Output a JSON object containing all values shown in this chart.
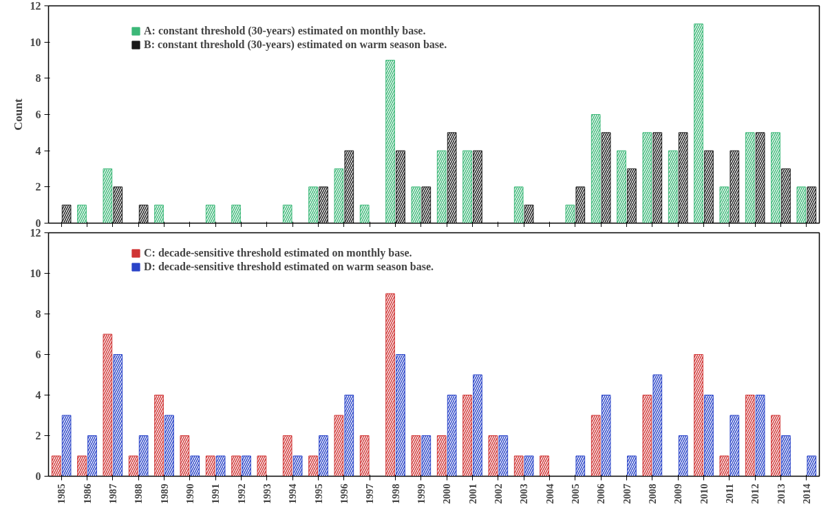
{
  "chart_data": [
    {
      "type": "bar",
      "ylabel": "Count",
      "categories": [
        "1985",
        "1986",
        "1987",
        "1988",
        "1989",
        "1990",
        "1991",
        "1992",
        "1993",
        "1994",
        "1995",
        "1996",
        "1997",
        "1998",
        "1999",
        "2000",
        "2001",
        "2002",
        "2003",
        "2004",
        "2005",
        "2006",
        "2007",
        "2008",
        "2009",
        "2010",
        "2011",
        "2012",
        "2013",
        "2014"
      ],
      "series": [
        {
          "name": "A: constant threshold (30-years) estimated on monthly base.",
          "color": "#3cb878",
          "values": [
            0,
            1,
            3,
            0,
            1,
            0,
            1,
            1,
            0,
            1,
            2,
            3,
            1,
            9,
            2,
            4,
            4,
            0,
            2,
            0,
            1,
            6,
            4,
            5,
            4,
            11,
            2,
            5,
            5,
            2
          ]
        },
        {
          "name": "B: constant threshold (30-years) estimated on warm season base.",
          "color": "#1a1a1a",
          "values": [
            1,
            0,
            2,
            1,
            0,
            0,
            0,
            0,
            0,
            0,
            2,
            4,
            0,
            4,
            2,
            5,
            4,
            0,
            1,
            0,
            2,
            5,
            3,
            5,
            5,
            4,
            4,
            5,
            3,
            2
          ]
        }
      ],
      "ylim": [
        0,
        12
      ],
      "yticks": [
        0,
        2,
        4,
        6,
        8,
        10,
        12
      ],
      "grid": false,
      "legend": "top left",
      "tick_labels": "y"
    },
    {
      "type": "bar",
      "categories": [
        "1985",
        "1986",
        "1987",
        "1988",
        "1989",
        "1990",
        "1991",
        "1992",
        "1993",
        "1994",
        "1995",
        "1996",
        "1997",
        "1998",
        "1999",
        "2000",
        "2001",
        "2002",
        "2003",
        "2004",
        "2005",
        "2006",
        "2007",
        "2008",
        "2009",
        "2010",
        "2011",
        "2012",
        "2013",
        "2014"
      ],
      "series": [
        {
          "name": "C: decade-sensitive threshold estimated on monthly base.",
          "color": "#d03535",
          "values": [
            1,
            1,
            7,
            1,
            4,
            2,
            1,
            1,
            1,
            2,
            1,
            3,
            2,
            9,
            2,
            2,
            4,
            2,
            1,
            1,
            0,
            3,
            0,
            4,
            0,
            6,
            1,
            4,
            3,
            0
          ]
        },
        {
          "name": "D: decade-sensitive threshold estimated on warm season base.",
          "color": "#2a44c8",
          "values": [
            3,
            2,
            6,
            2,
            3,
            1,
            1,
            1,
            0,
            1,
            2,
            4,
            0,
            6,
            2,
            4,
            5,
            2,
            1,
            0,
            1,
            4,
            1,
            5,
            2,
            4,
            3,
            4,
            2,
            1
          ]
        }
      ],
      "ylim": [
        0,
        12
      ],
      "yticks": [
        0,
        2,
        4,
        6,
        8,
        10,
        12
      ],
      "grid": false,
      "legend": "top left"
    }
  ]
}
